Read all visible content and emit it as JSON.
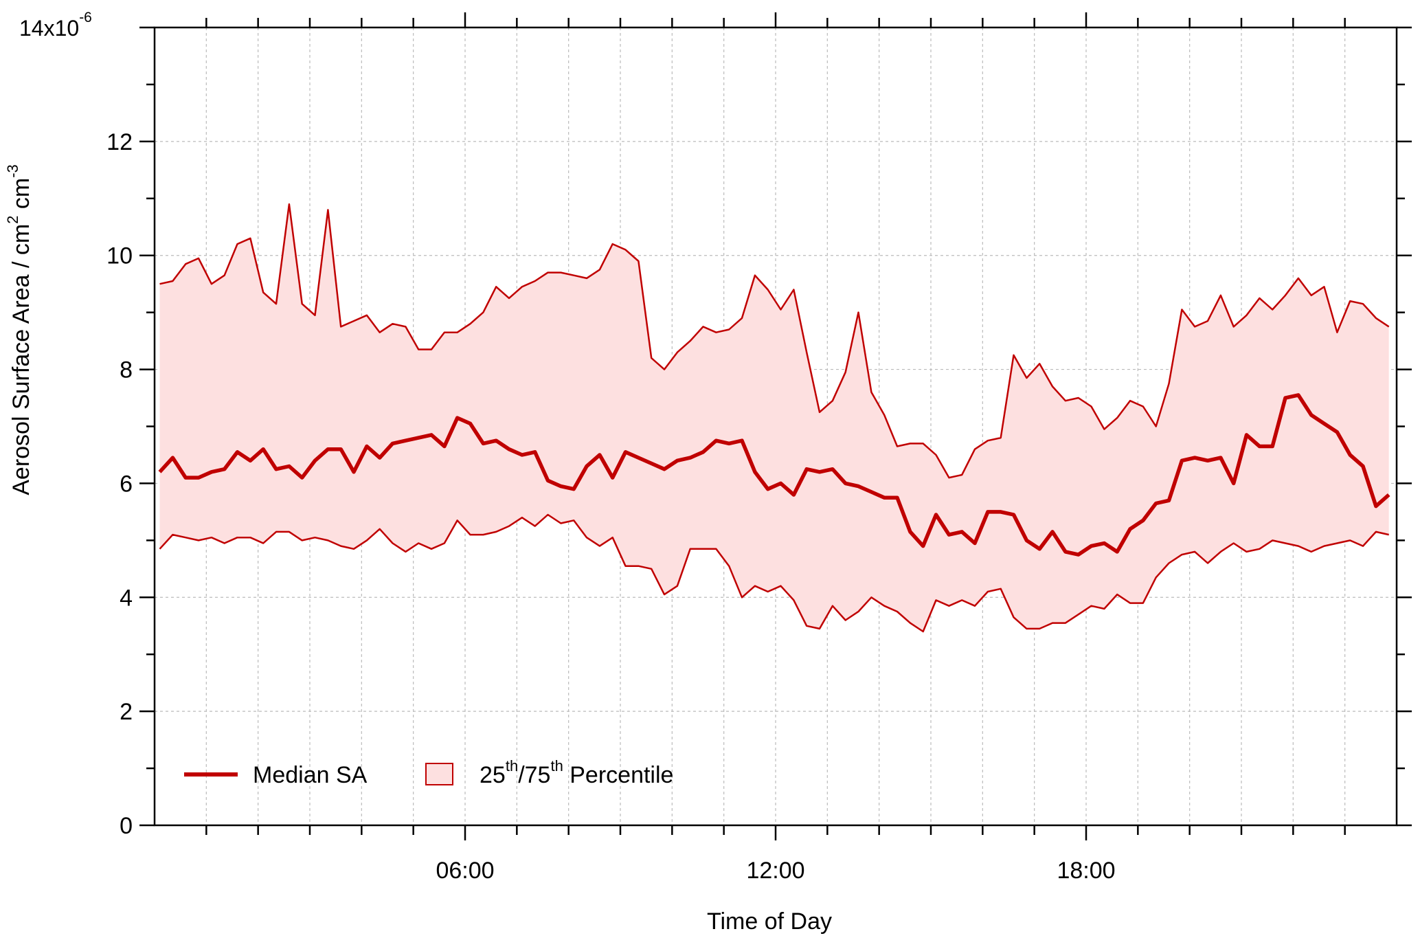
{
  "chart_data": {
    "type": "area",
    "title": "",
    "xlabel": "Time of Day",
    "ylabel": {
      "main": "Aerosol Surface Area / cm",
      "exp1": "2",
      "mid": " cm",
      "exp2": "-3"
    },
    "y_multiplier": {
      "base": "14x10",
      "exp": "-6"
    },
    "xlim": [
      0,
      24
    ],
    "ylim": [
      0,
      14
    ],
    "x_ticks": [
      {
        "value": 6,
        "label": "06:00"
      },
      {
        "value": 12,
        "label": "12:00"
      },
      {
        "value": 18,
        "label": "18:00"
      }
    ],
    "y_ticks": [
      {
        "value": 0,
        "label": "0"
      },
      {
        "value": 2,
        "label": "2"
      },
      {
        "value": 4,
        "label": "4"
      },
      {
        "value": 6,
        "label": "6"
      },
      {
        "value": 8,
        "label": "8"
      },
      {
        "value": 10,
        "label": "10"
      },
      {
        "value": 12,
        "label": "12"
      },
      {
        "value": 14,
        "label": ""
      }
    ],
    "grid": true,
    "legend": {
      "placement": "bottom-left",
      "median": "Median SA",
      "band_prefix": "25",
      "band_sup1": "th",
      "band_mid": "/75",
      "band_sup2": "th",
      "band_suffix": " Percentile"
    },
    "colors": {
      "line": "#c00000",
      "band": "#fde0e0",
      "band_edge": "#c00000",
      "grid": "#bbbbbb"
    },
    "x": [
      0.1,
      0.35,
      0.6,
      0.85,
      1.1,
      1.35,
      1.6,
      1.85,
      2.1,
      2.35,
      2.6,
      2.85,
      3.1,
      3.35,
      3.6,
      3.85,
      4.1,
      4.35,
      4.6,
      4.85,
      5.1,
      5.35,
      5.6,
      5.85,
      6.1,
      6.35,
      6.6,
      6.85,
      7.1,
      7.35,
      7.6,
      7.85,
      8.1,
      8.35,
      8.6,
      8.85,
      9.1,
      9.35,
      9.6,
      9.85,
      10.1,
      10.35,
      10.6,
      10.85,
      11.1,
      11.35,
      11.6,
      11.85,
      12.1,
      12.35,
      12.6,
      12.85,
      13.1,
      13.35,
      13.6,
      13.85,
      14.1,
      14.35,
      14.6,
      14.85,
      15.1,
      15.35,
      15.6,
      15.85,
      16.1,
      16.35,
      16.6,
      16.85,
      17.1,
      17.35,
      17.6,
      17.85,
      18.1,
      18.35,
      18.6,
      18.85,
      19.1,
      19.35,
      19.6,
      19.85,
      20.1,
      20.35,
      20.6,
      20.85,
      21.1,
      21.35,
      21.6,
      21.85,
      22.1,
      22.35,
      22.6,
      22.85,
      23.1,
      23.35,
      23.6,
      23.85
    ],
    "series": [
      {
        "name": "Median SA",
        "role": "median",
        "values": [
          6.2,
          6.45,
          6.1,
          6.1,
          6.2,
          6.25,
          6.55,
          6.4,
          6.6,
          6.25,
          6.3,
          6.1,
          6.4,
          6.6,
          6.6,
          6.2,
          6.65,
          6.45,
          6.7,
          6.75,
          6.8,
          6.85,
          6.65,
          7.15,
          7.05,
          6.7,
          6.75,
          6.6,
          6.5,
          6.55,
          6.05,
          5.95,
          5.9,
          6.3,
          6.5,
          6.1,
          6.55,
          6.45,
          6.35,
          6.25,
          6.4,
          6.45,
          6.55,
          6.75,
          6.7,
          6.75,
          6.2,
          5.9,
          6.0,
          5.8,
          6.25,
          6.2,
          6.25,
          6.0,
          5.95,
          5.85,
          5.75,
          5.75,
          5.15,
          4.9,
          5.45,
          5.1,
          5.15,
          4.95,
          5.5,
          5.5,
          5.45,
          5.0,
          4.85,
          5.15,
          4.8,
          4.75,
          4.9,
          4.95,
          4.8,
          5.2,
          5.35,
          5.65,
          5.7,
          6.4,
          6.45,
          6.4,
          6.45,
          6.0,
          6.85,
          6.65,
          6.65,
          7.5,
          7.55,
          7.2,
          7.05,
          6.9,
          6.5,
          6.3,
          5.6,
          5.8
        ]
      },
      {
        "name": "75th",
        "role": "upper",
        "values": [
          9.5,
          9.55,
          9.85,
          9.95,
          9.5,
          9.65,
          10.2,
          10.3,
          9.35,
          9.15,
          10.9,
          9.15,
          8.95,
          10.8,
          8.75,
          8.85,
          8.95,
          8.65,
          8.8,
          8.75,
          8.35,
          8.35,
          8.65,
          8.65,
          8.8,
          9.0,
          9.45,
          9.25,
          9.45,
          9.55,
          9.7,
          9.7,
          9.65,
          9.6,
          9.75,
          10.2,
          10.1,
          9.9,
          8.2,
          8.0,
          8.3,
          8.5,
          8.75,
          8.65,
          8.7,
          8.9,
          9.65,
          9.4,
          9.05,
          9.4,
          8.3,
          7.25,
          7.45,
          7.95,
          9.0,
          7.6,
          7.2,
          6.65,
          6.7,
          6.7,
          6.5,
          6.1,
          6.15,
          6.6,
          6.75,
          6.8,
          8.25,
          7.85,
          8.1,
          7.7,
          7.45,
          7.5,
          7.35,
          6.95,
          7.15,
          7.45,
          7.35,
          7.0,
          7.75,
          9.05,
          8.75,
          8.85,
          9.3,
          8.75,
          8.95,
          9.25,
          9.05,
          9.3,
          9.6,
          9.3,
          9.45,
          8.65,
          9.2,
          9.15,
          8.9,
          8.75
        ]
      },
      {
        "name": "25th",
        "role": "lower",
        "values": [
          4.85,
          5.1,
          5.05,
          5.0,
          5.05,
          4.95,
          5.05,
          5.05,
          4.95,
          5.15,
          5.15,
          5.0,
          5.05,
          5.0,
          4.9,
          4.85,
          5.0,
          5.2,
          4.95,
          4.8,
          4.95,
          4.85,
          4.95,
          5.35,
          5.1,
          5.1,
          5.15,
          5.25,
          5.4,
          5.25,
          5.45,
          5.3,
          5.35,
          5.05,
          4.9,
          5.05,
          4.55,
          4.55,
          4.5,
          4.05,
          4.2,
          4.85,
          4.85,
          4.85,
          4.55,
          4.0,
          4.2,
          4.1,
          4.2,
          3.95,
          3.5,
          3.45,
          3.85,
          3.6,
          3.75,
          4.0,
          3.85,
          3.75,
          3.55,
          3.4,
          3.95,
          3.85,
          3.95,
          3.85,
          4.1,
          4.15,
          3.65,
          3.45,
          3.45,
          3.55,
          3.55,
          3.7,
          3.85,
          3.8,
          4.05,
          3.9,
          3.9,
          4.35,
          4.6,
          4.75,
          4.8,
          4.6,
          4.8,
          4.95,
          4.8,
          4.85,
          5.0,
          4.95,
          4.9,
          4.8,
          4.9,
          4.95,
          5.0,
          4.9,
          5.15,
          5.1
        ]
      }
    ]
  }
}
